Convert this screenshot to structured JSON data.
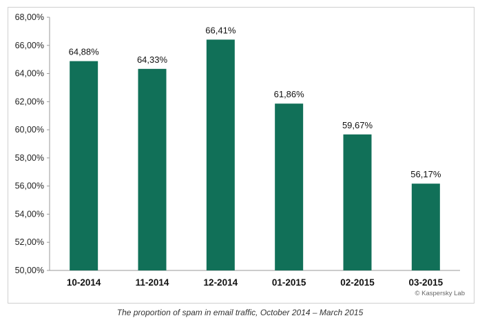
{
  "chart_data": {
    "type": "bar",
    "categories": [
      "10-2014",
      "11-2014",
      "12-2014",
      "01-2015",
      "02-2015",
      "03-2015"
    ],
    "values": [
      64.88,
      64.33,
      66.41,
      61.86,
      59.67,
      56.17
    ],
    "data_labels": [
      "64,88%",
      "64,33%",
      "66,41%",
      "61,86%",
      "59,67%",
      "56,17%"
    ],
    "y_ticks": [
      50,
      52,
      54,
      56,
      58,
      60,
      62,
      64,
      66,
      68
    ],
    "y_tick_labels": [
      "50,00%",
      "52,00%",
      "54,00%",
      "56,00%",
      "58,00%",
      "60,00%",
      "62,00%",
      "64,00%",
      "66,00%",
      "68,00%"
    ],
    "ylim": [
      50,
      68
    ],
    "grid": false,
    "bar_color": "#117058"
  },
  "watermark": "© Kaspersky Lab",
  "caption": "The proportion of spam in email traffic, October 2014 – March 2015"
}
